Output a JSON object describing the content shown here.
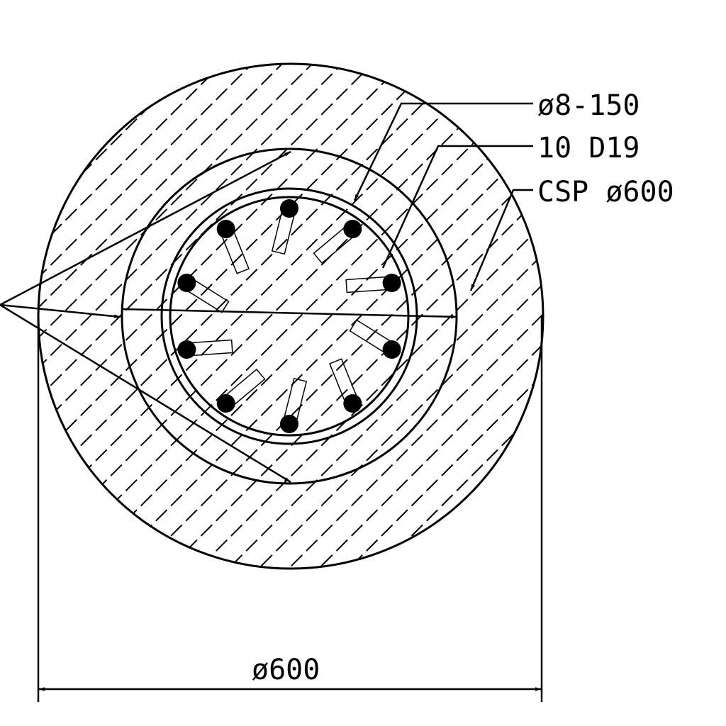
{
  "drawing": {
    "callouts": {
      "ties": "ø8-150",
      "main_bars": "10 D19",
      "casing": "CSP ø600"
    },
    "dimension": {
      "diameter": "ø600"
    },
    "rebar_count": 10,
    "colors": {
      "ink": "#000000",
      "background": "#ffffff"
    }
  }
}
